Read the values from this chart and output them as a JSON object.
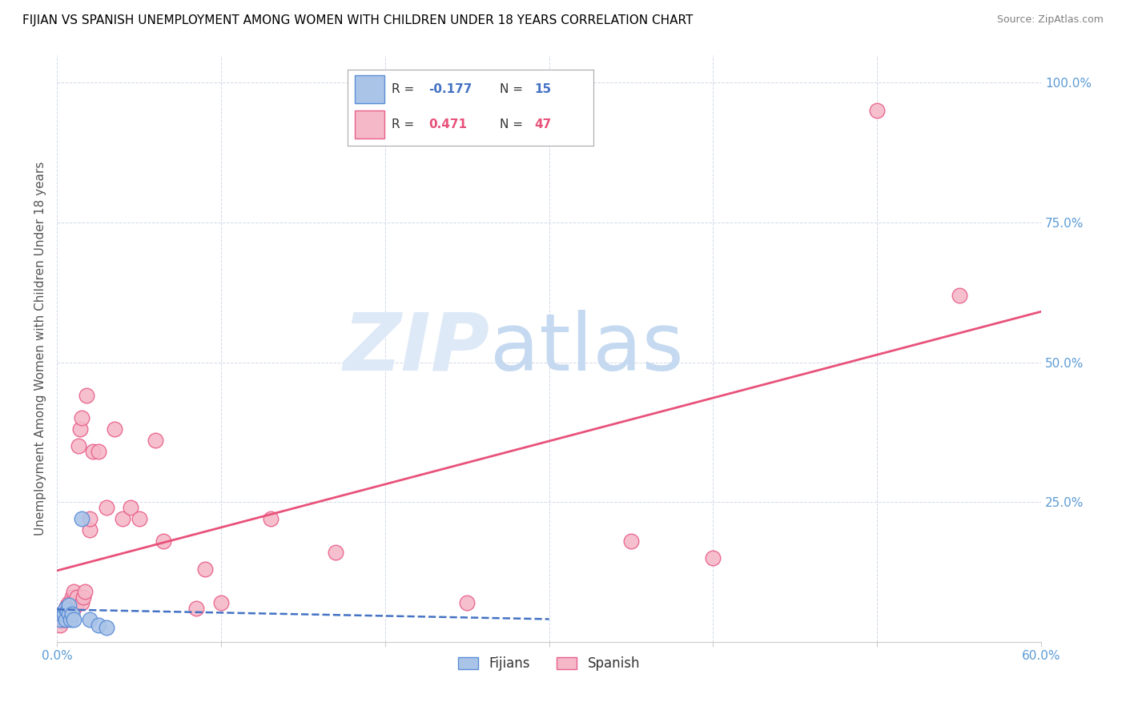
{
  "title": "FIJIAN VS SPANISH UNEMPLOYMENT AMONG WOMEN WITH CHILDREN UNDER 18 YEARS CORRELATION CHART",
  "source": "Source: ZipAtlas.com",
  "ylabel": "Unemployment Among Women with Children Under 18 years",
  "xlim": [
    0.0,
    0.6
  ],
  "ylim": [
    0.0,
    1.05
  ],
  "xticks": [
    0.0,
    0.1,
    0.2,
    0.3,
    0.4,
    0.5,
    0.6
  ],
  "xticklabels_left": "0.0%",
  "xticklabels_right": "60.0%",
  "yticks": [
    0.0,
    0.25,
    0.5,
    0.75,
    1.0
  ],
  "yticklabels": [
    "",
    "25.0%",
    "50.0%",
    "75.0%",
    "100.0%"
  ],
  "fijian_color": "#aac4e8",
  "spanish_color": "#f5b8c8",
  "fijian_edge_color": "#5b8ed6",
  "spanish_edge_color": "#e8608a",
  "fijian_line_color": "#4472c4",
  "spanish_line_color": "#e8527a",
  "legend_R_fijian": "-0.177",
  "legend_N_fijian": "15",
  "legend_R_spanish": "0.471",
  "legend_N_spanish": "47",
  "fijian_x": [
    0.002,
    0.003,
    0.004,
    0.005,
    0.005,
    0.006,
    0.007,
    0.007,
    0.008,
    0.009,
    0.01,
    0.015,
    0.02,
    0.025,
    0.03
  ],
  "fijian_y": [
    0.04,
    0.05,
    0.05,
    0.04,
    0.06,
    0.055,
    0.05,
    0.065,
    0.04,
    0.05,
    0.04,
    0.22,
    0.04,
    0.03,
    0.025
  ],
  "spanish_x": [
    0.002,
    0.003,
    0.003,
    0.004,
    0.005,
    0.005,
    0.006,
    0.006,
    0.007,
    0.007,
    0.008,
    0.008,
    0.009,
    0.009,
    0.01,
    0.01,
    0.01,
    0.012,
    0.012,
    0.013,
    0.014,
    0.015,
    0.015,
    0.016,
    0.017,
    0.018,
    0.02,
    0.02,
    0.022,
    0.025,
    0.03,
    0.035,
    0.04,
    0.045,
    0.05,
    0.06,
    0.065,
    0.085,
    0.09,
    0.1,
    0.13,
    0.17,
    0.25,
    0.35,
    0.4,
    0.5,
    0.55
  ],
  "spanish_y": [
    0.03,
    0.04,
    0.05,
    0.04,
    0.05,
    0.06,
    0.055,
    0.065,
    0.05,
    0.07,
    0.05,
    0.065,
    0.07,
    0.08,
    0.06,
    0.075,
    0.09,
    0.07,
    0.08,
    0.35,
    0.38,
    0.4,
    0.07,
    0.08,
    0.09,
    0.44,
    0.2,
    0.22,
    0.34,
    0.34,
    0.24,
    0.38,
    0.22,
    0.24,
    0.22,
    0.36,
    0.18,
    0.06,
    0.13,
    0.07,
    0.22,
    0.16,
    0.07,
    0.18,
    0.15,
    0.95,
    0.62
  ],
  "grid_color": "#d0d8e8",
  "tick_color": "#5b9bd5",
  "title_fontsize": 11,
  "axis_fontsize": 11,
  "tick_fontsize": 11
}
